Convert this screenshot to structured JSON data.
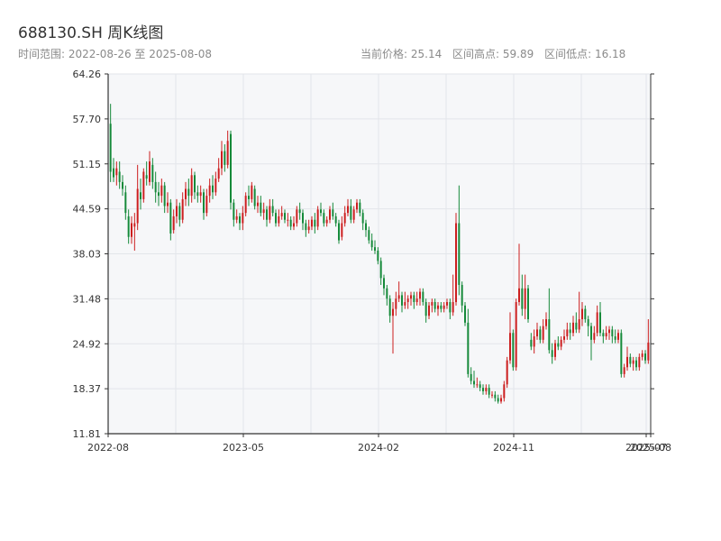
{
  "header": {
    "title": "688130.SH 周K线图",
    "range_label": "时间范围: 2022-08-26 至 2025-08-08",
    "current_price": "当前价格: 25.14",
    "range_high": "区间高点: 59.89",
    "range_low": "区间低点: 16.18"
  },
  "colors": {
    "up": "#cc1f1f",
    "down": "#168a3a",
    "grid": "#e3e6ea",
    "plot_bg": "#f6f7f9",
    "axis": "#333333"
  },
  "chart_data": {
    "type": "candlestick",
    "y_ticks": [
      "64.26",
      "57.70",
      "51.15",
      "44.59",
      "38.03",
      "31.48",
      "24.92",
      "18.37",
      "11.81"
    ],
    "ylim": [
      11.81,
      64.26
    ],
    "x_ticks": [
      "2022-08",
      "2023-05",
      "2024-02",
      "2024-11",
      "2025-07",
      "2025-08"
    ],
    "grid": true,
    "candles": [
      [
        57.0,
        50.0,
        59.9,
        48.5
      ],
      [
        50.5,
        49.2,
        52.0,
        48.5
      ],
      [
        49.5,
        50.5,
        51.5,
        48.0
      ],
      [
        50.0,
        48.5,
        51.5,
        47.5
      ],
      [
        48.5,
        47.5,
        49.5,
        46.5
      ],
      [
        47.0,
        44.0,
        48.0,
        43.0
      ],
      [
        43.5,
        40.5,
        44.5,
        39.5
      ],
      [
        40.5,
        42.5,
        43.5,
        39.5
      ],
      [
        42.0,
        42.5,
        44.0,
        38.5
      ],
      [
        42.5,
        47.5,
        51.0,
        41.5
      ],
      [
        47.0,
        46.0,
        49.0,
        44.5
      ],
      [
        46.0,
        50.0,
        50.5,
        45.5
      ],
      [
        49.5,
        49.0,
        51.5,
        48.0
      ],
      [
        48.5,
        51.5,
        53.0,
        48.0
      ],
      [
        51.0,
        48.5,
        52.0,
        47.5
      ],
      [
        48.5,
        47.0,
        50.0,
        45.5
      ],
      [
        47.0,
        46.5,
        48.5,
        45.0
      ],
      [
        46.5,
        48.0,
        49.0,
        45.5
      ],
      [
        48.0,
        45.0,
        48.5,
        44.0
      ],
      [
        45.0,
        45.5,
        47.0,
        44.0
      ],
      [
        45.5,
        41.0,
        46.0,
        40.0
      ],
      [
        41.5,
        43.5,
        44.5,
        41.0
      ],
      [
        43.5,
        45.0,
        46.0,
        42.5
      ],
      [
        45.0,
        43.0,
        45.5,
        42.0
      ],
      [
        43.0,
        46.0,
        47.0,
        42.5
      ],
      [
        46.0,
        47.5,
        48.5,
        45.0
      ],
      [
        47.5,
        46.5,
        49.0,
        45.0
      ],
      [
        46.5,
        49.5,
        50.5,
        45.5
      ],
      [
        49.5,
        47.0,
        50.0,
        46.0
      ],
      [
        47.0,
        46.5,
        48.0,
        45.5
      ],
      [
        46.5,
        47.0,
        48.0,
        45.5
      ],
      [
        47.0,
        44.0,
        47.5,
        43.0
      ],
      [
        44.0,
        46.5,
        47.5,
        43.5
      ],
      [
        46.5,
        48.0,
        49.0,
        45.5
      ],
      [
        48.0,
        47.0,
        49.5,
        46.0
      ],
      [
        47.0,
        49.0,
        50.0,
        46.5
      ],
      [
        49.0,
        50.5,
        52.0,
        48.5
      ],
      [
        50.5,
        53.0,
        54.5,
        49.5
      ],
      [
        53.0,
        51.0,
        54.0,
        50.0
      ],
      [
        51.0,
        54.5,
        56.0,
        50.5
      ],
      [
        55.5,
        45.5,
        56.0,
        44.5
      ],
      [
        45.5,
        43.0,
        46.0,
        42.0
      ],
      [
        43.0,
        43.5,
        44.5,
        42.5
      ],
      [
        43.5,
        42.5,
        44.0,
        41.5
      ],
      [
        42.5,
        44.0,
        45.0,
        41.5
      ],
      [
        44.0,
        46.5,
        47.0,
        43.5
      ],
      [
        46.5,
        46.0,
        48.0,
        45.0
      ],
      [
        46.0,
        48.0,
        48.5,
        45.5
      ],
      [
        47.5,
        45.0,
        48.0,
        44.5
      ],
      [
        45.0,
        45.5,
        46.5,
        44.0
      ],
      [
        45.5,
        44.0,
        46.5,
        43.5
      ],
      [
        44.0,
        44.5,
        45.5,
        43.0
      ],
      [
        44.5,
        43.0,
        45.0,
        42.0
      ],
      [
        43.0,
        45.0,
        46.0,
        42.5
      ],
      [
        45.0,
        44.0,
        46.0,
        43.5
      ],
      [
        44.0,
        42.5,
        44.5,
        42.0
      ],
      [
        42.5,
        43.5,
        44.5,
        42.0
      ],
      [
        43.5,
        44.0,
        45.0,
        43.0
      ],
      [
        44.0,
        43.0,
        44.5,
        42.5
      ],
      [
        43.0,
        43.0,
        44.0,
        42.0
      ],
      [
        43.0,
        42.0,
        43.5,
        41.5
      ],
      [
        42.0,
        42.5,
        43.5,
        41.5
      ],
      [
        42.5,
        44.5,
        45.0,
        42.0
      ],
      [
        44.5,
        44.0,
        45.5,
        43.0
      ],
      [
        44.0,
        42.5,
        44.5,
        41.5
      ],
      [
        42.5,
        41.5,
        43.0,
        40.5
      ],
      [
        41.5,
        42.0,
        43.0,
        41.0
      ],
      [
        42.0,
        43.0,
        43.5,
        41.5
      ],
      [
        43.0,
        42.0,
        44.0,
        41.0
      ],
      [
        42.0,
        44.5,
        45.0,
        41.5
      ],
      [
        44.5,
        44.0,
        45.5,
        43.5
      ],
      [
        44.0,
        42.5,
        44.5,
        42.0
      ],
      [
        42.5,
        43.0,
        43.5,
        42.0
      ],
      [
        43.0,
        44.5,
        45.0,
        42.5
      ],
      [
        44.5,
        43.5,
        45.5,
        43.0
      ],
      [
        43.5,
        42.5,
        44.0,
        42.0
      ],
      [
        42.5,
        40.0,
        43.0,
        39.5
      ],
      [
        40.5,
        42.5,
        43.5,
        40.0
      ],
      [
        42.5,
        44.0,
        45.0,
        42.0
      ],
      [
        44.0,
        45.0,
        46.0,
        43.5
      ],
      [
        45.0,
        43.0,
        46.0,
        42.5
      ],
      [
        43.0,
        44.5,
        45.0,
        42.5
      ],
      [
        44.5,
        45.5,
        46.0,
        44.0
      ],
      [
        45.5,
        44.0,
        46.0,
        43.5
      ],
      [
        44.0,
        42.5,
        44.5,
        41.5
      ],
      [
        42.5,
        41.5,
        43.0,
        40.5
      ],
      [
        41.5,
        40.0,
        42.0,
        39.5
      ],
      [
        40.0,
        39.0,
        41.0,
        38.5
      ],
      [
        39.0,
        38.5,
        40.0,
        38.0
      ],
      [
        38.5,
        37.0,
        39.0,
        36.5
      ],
      [
        37.0,
        34.5,
        37.5,
        33.5
      ],
      [
        34.5,
        33.0,
        35.0,
        32.0
      ],
      [
        33.0,
        31.5,
        33.5,
        30.5
      ],
      [
        31.5,
        29.0,
        32.0,
        28.0
      ],
      [
        29.0,
        30.0,
        31.0,
        23.5
      ],
      [
        30.0,
        31.5,
        32.5,
        29.0
      ],
      [
        31.5,
        32.0,
        34.0,
        31.0
      ],
      [
        32.0,
        30.5,
        32.5,
        29.5
      ],
      [
        30.5,
        31.0,
        32.5,
        30.0
      ],
      [
        31.0,
        31.5,
        32.0,
        30.0
      ],
      [
        31.5,
        32.0,
        32.5,
        30.5
      ],
      [
        32.0,
        31.0,
        32.5,
        30.0
      ],
      [
        31.0,
        31.5,
        32.5,
        30.5
      ],
      [
        31.5,
        32.5,
        33.0,
        30.5
      ],
      [
        32.5,
        31.0,
        33.0,
        30.5
      ],
      [
        31.0,
        29.0,
        31.5,
        28.0
      ],
      [
        29.0,
        30.5,
        31.0,
        28.5
      ],
      [
        30.5,
        31.0,
        31.5,
        29.5
      ],
      [
        31.0,
        30.0,
        31.5,
        29.5
      ],
      [
        30.0,
        30.5,
        31.0,
        29.0
      ],
      [
        30.5,
        30.0,
        31.0,
        29.5
      ],
      [
        30.0,
        30.5,
        31.0,
        29.5
      ],
      [
        30.5,
        31.0,
        31.5,
        30.0
      ],
      [
        31.0,
        29.5,
        31.5,
        28.5
      ],
      [
        29.5,
        31.0,
        35.0,
        29.0
      ],
      [
        31.0,
        42.5,
        44.0,
        30.5
      ],
      [
        42.5,
        33.5,
        48.0,
        32.0
      ],
      [
        33.5,
        30.5,
        34.0,
        29.5
      ],
      [
        30.5,
        28.0,
        31.0,
        27.5
      ],
      [
        28.0,
        20.5,
        30.0,
        20.0
      ],
      [
        20.5,
        19.5,
        21.5,
        19.0
      ],
      [
        19.5,
        19.0,
        21.0,
        18.5
      ],
      [
        19.0,
        19.0,
        20.0,
        18.5
      ],
      [
        19.0,
        18.5,
        19.5,
        18.0
      ],
      [
        18.5,
        18.0,
        19.0,
        17.5
      ],
      [
        18.0,
        18.5,
        19.0,
        17.5
      ],
      [
        18.5,
        17.5,
        19.0,
        17.0
      ],
      [
        17.5,
        17.5,
        18.0,
        17.0
      ],
      [
        17.5,
        17.0,
        18.0,
        16.5
      ],
      [
        17.0,
        16.5,
        17.5,
        16.2
      ],
      [
        16.5,
        17.0,
        17.5,
        16.2
      ],
      [
        17.0,
        19.0,
        19.5,
        16.5
      ],
      [
        19.0,
        22.5,
        23.0,
        18.5
      ],
      [
        22.5,
        26.5,
        29.5,
        22.0
      ],
      [
        26.5,
        21.5,
        27.0,
        21.0
      ],
      [
        21.5,
        31.0,
        31.5,
        21.0
      ],
      [
        31.0,
        33.0,
        39.5,
        30.5
      ],
      [
        33.0,
        30.0,
        35.0,
        29.0
      ],
      [
        30.0,
        33.0,
        35.0,
        28.5
      ],
      [
        33.0,
        28.5,
        33.5,
        28.0
      ],
      [
        25.5,
        24.5,
        26.5,
        24.0
      ],
      [
        24.5,
        26.0,
        27.0,
        23.5
      ],
      [
        26.0,
        27.0,
        28.0,
        25.5
      ],
      [
        27.0,
        25.5,
        27.5,
        25.0
      ],
      [
        25.5,
        27.5,
        28.5,
        25.0
      ],
      [
        27.5,
        28.5,
        29.5,
        27.0
      ],
      [
        28.5,
        24.0,
        33.0,
        23.5
      ],
      [
        24.0,
        23.0,
        25.0,
        22.0
      ],
      [
        23.0,
        25.0,
        25.5,
        22.5
      ],
      [
        25.0,
        24.5,
        26.0,
        24.0
      ],
      [
        24.5,
        25.5,
        26.0,
        24.0
      ],
      [
        25.5,
        26.0,
        27.0,
        25.0
      ],
      [
        26.0,
        27.0,
        28.0,
        25.5
      ],
      [
        27.0,
        26.5,
        28.0,
        25.5
      ],
      [
        26.5,
        28.0,
        29.0,
        26.0
      ],
      [
        28.0,
        27.0,
        29.5,
        26.5
      ],
      [
        27.0,
        28.5,
        32.5,
        26.5
      ],
      [
        28.5,
        30.0,
        31.0,
        27.5
      ],
      [
        30.0,
        28.5,
        30.5,
        28.0
      ],
      [
        28.5,
        27.5,
        29.0,
        26.0
      ],
      [
        27.5,
        25.5,
        28.0,
        22.5
      ],
      [
        25.5,
        26.5,
        27.5,
        25.0
      ],
      [
        26.5,
        29.5,
        30.5,
        26.0
      ],
      [
        29.5,
        26.5,
        31.0,
        26.0
      ],
      [
        26.5,
        26.0,
        27.0,
        25.0
      ],
      [
        26.0,
        26.5,
        27.5,
        25.5
      ],
      [
        26.5,
        27.0,
        27.5,
        25.5
      ],
      [
        27.0,
        26.0,
        27.5,
        25.0
      ],
      [
        26.0,
        25.5,
        27.0,
        25.0
      ],
      [
        25.5,
        26.5,
        27.0,
        25.0
      ],
      [
        26.5,
        20.5,
        27.0,
        20.0
      ],
      [
        20.5,
        21.5,
        22.0,
        20.0
      ],
      [
        21.5,
        23.0,
        24.5,
        21.0
      ],
      [
        23.0,
        22.0,
        23.5,
        21.5
      ],
      [
        22.0,
        22.5,
        23.0,
        21.0
      ],
      [
        22.5,
        21.5,
        23.0,
        21.0
      ],
      [
        21.5,
        23.0,
        23.5,
        21.0
      ],
      [
        23.0,
        23.5,
        24.0,
        22.5
      ],
      [
        23.5,
        22.5,
        24.0,
        22.0
      ],
      [
        22.5,
        25.1,
        28.5,
        22.0
      ]
    ]
  }
}
